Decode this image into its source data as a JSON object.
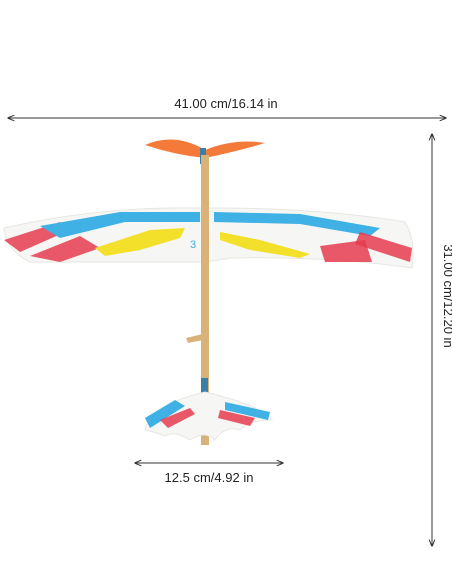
{
  "dimensions": {
    "width": "41.00 cm/16.14 in",
    "height": "31.00 cm/12.20 in",
    "tail_width": "12.5 cm/4.92 in"
  },
  "wing_number": "3"
}
